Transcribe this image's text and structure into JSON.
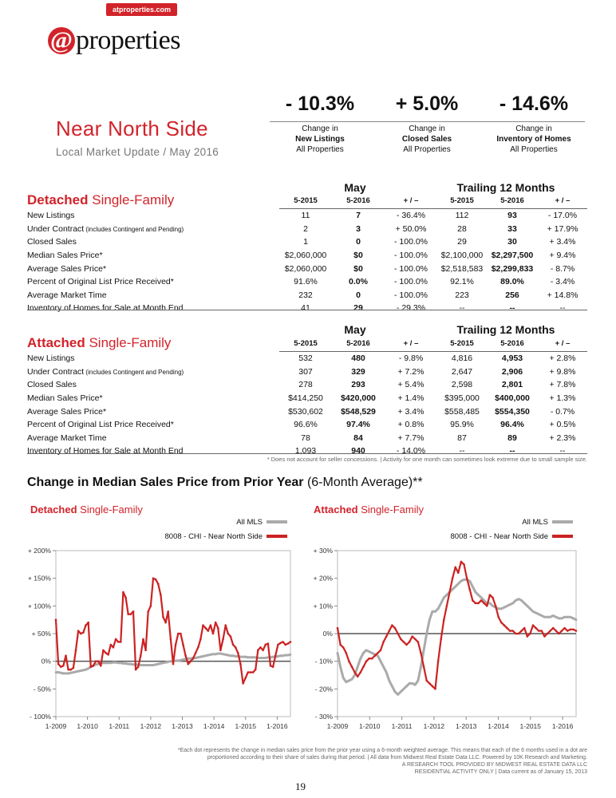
{
  "header": {
    "site_tag": "atproperties.com",
    "logo_at": "@",
    "logo_word": "properties",
    "title": "Near North Side",
    "subtitle": "Local Market Update / May 2016",
    "brand_color": "#d2232a"
  },
  "headlines": [
    {
      "value": "- 10.3%",
      "line1": "Change in",
      "line2": "New Listings",
      "line3": "All Properties"
    },
    {
      "value": "+ 5.0%",
      "line1": "Change in",
      "line2": "Closed Sales",
      "line3": "All Properties"
    },
    {
      "value": "- 14.6%",
      "line1": "Change in",
      "line2": "Inventory of Homes",
      "line3": "All Properties"
    }
  ],
  "group_labels": {
    "may": "May",
    "trailing": "Trailing 12 Months"
  },
  "columns": [
    "5-2015",
    "5-2016",
    "+ / –",
    "5-2015",
    "5-2016",
    "+ / –"
  ],
  "detached": {
    "title_bold": "Detached",
    "title_rest": " Single-Family",
    "rows": [
      {
        "label": "New Listings",
        "note": "",
        "cells": [
          "11",
          "7",
          "- 36.4%",
          "112",
          "93",
          "- 17.0%"
        ]
      },
      {
        "label": "Under Contract",
        "note": " (includes Contingent and Pending)",
        "cells": [
          "2",
          "3",
          "+ 50.0%",
          "28",
          "33",
          "+ 17.9%"
        ]
      },
      {
        "label": "Closed Sales",
        "note": "",
        "cells": [
          "1",
          "0",
          "- 100.0%",
          "29",
          "30",
          "+ 3.4%"
        ]
      },
      {
        "label": "Median Sales Price*",
        "note": "",
        "cells": [
          "$2,060,000",
          "$0",
          "- 100.0%",
          "$2,100,000",
          "$2,297,500",
          "+ 9.4%"
        ]
      },
      {
        "label": "Average Sales Price*",
        "note": "",
        "cells": [
          "$2,060,000",
          "$0",
          "- 100.0%",
          "$2,518,583",
          "$2,299,833",
          "- 8.7%"
        ]
      },
      {
        "label": "Percent of Original List Price Received*",
        "note": "",
        "cells": [
          "91.6%",
          "0.0%",
          "- 100.0%",
          "92.1%",
          "89.0%",
          "- 3.4%"
        ]
      },
      {
        "label": "Average Market Time",
        "note": "",
        "cells": [
          "232",
          "0",
          "- 100.0%",
          "223",
          "256",
          "+ 14.8%"
        ]
      },
      {
        "label": "Inventory of Homes for Sale at Month End",
        "note": "",
        "cells": [
          "41",
          "29",
          "- 29.3%",
          "--",
          "--",
          "--"
        ]
      }
    ]
  },
  "attached": {
    "title_bold": "Attached",
    "title_rest": " Single-Family",
    "rows": [
      {
        "label": "New Listings",
        "note": "",
        "cells": [
          "532",
          "480",
          "- 9.8%",
          "4,816",
          "4,953",
          "+ 2.8%"
        ]
      },
      {
        "label": "Under Contract",
        "note": " (includes Contingent and Pending)",
        "cells": [
          "307",
          "329",
          "+ 7.2%",
          "2,647",
          "2,906",
          "+ 9.8%"
        ]
      },
      {
        "label": "Closed Sales",
        "note": "",
        "cells": [
          "278",
          "293",
          "+ 5.4%",
          "2,598",
          "2,801",
          "+ 7.8%"
        ]
      },
      {
        "label": "Median Sales Price*",
        "note": "",
        "cells": [
          "$414,250",
          "$420,000",
          "+ 1.4%",
          "$395,000",
          "$400,000",
          "+ 1.3%"
        ]
      },
      {
        "label": "Average Sales Price*",
        "note": "",
        "cells": [
          "$530,602",
          "$548,529",
          "+ 3.4%",
          "$558,485",
          "$554,350",
          "- 0.7%"
        ]
      },
      {
        "label": "Percent of Original List Price Received*",
        "note": "",
        "cells": [
          "96.6%",
          "97.4%",
          "+ 0.8%",
          "95.9%",
          "96.4%",
          "+ 0.5%"
        ]
      },
      {
        "label": "Average Market Time",
        "note": "",
        "cells": [
          "78",
          "84",
          "+ 7.7%",
          "87",
          "89",
          "+ 2.3%"
        ]
      },
      {
        "label": "Inventory of Homes for Sale at Month End",
        "note": "",
        "cells": [
          "1,093",
          "940",
          "- 14.0%",
          "--",
          "--",
          "--"
        ]
      }
    ]
  },
  "table_footnote": "* Does not account for seller concessions.  |  Activity for one month can sometimes look extreme due to small sample size.",
  "chart_section": {
    "title": "Change in Median Sales Price from Prior Year",
    "title_suffix": " (6-Month Average)**"
  },
  "chart_data": [
    {
      "type": "line",
      "heading_bold": "Detached",
      "heading_rest": " Single-Family",
      "ylim": [
        -100,
        200
      ],
      "y_ticks": [
        200,
        150,
        100,
        50,
        0,
        -50,
        -100
      ],
      "y_tick_labels": [
        "+ 200%",
        "+ 150%",
        "+ 100%",
        "+ 50%",
        "0%",
        "- 50%",
        "- 100%"
      ],
      "x_tick_labels": [
        "1-2009",
        "1-2010",
        "1-2011",
        "1-2012",
        "1-2013",
        "1-2014",
        "1-2015",
        "1-2016"
      ],
      "x_start": 2009.0,
      "x_end": 2016.42,
      "series": [
        {
          "name": "All MLS",
          "color": "#aaaaaa",
          "values": [
            -20,
            -20,
            -21,
            -22,
            -22,
            -22,
            -21,
            -20,
            -19,
            -18,
            -17,
            -16,
            -15,
            -13,
            -10,
            -8,
            -6,
            -5,
            -4,
            -3,
            -3,
            -3,
            -3,
            -2,
            -2,
            -3,
            -3,
            -4,
            -4,
            -5,
            -5,
            -6,
            -6,
            -6,
            -7,
            -7,
            -7,
            -7,
            -7,
            -7,
            -6,
            -5,
            -4,
            -3,
            -2,
            -1,
            0,
            0,
            1,
            1,
            2,
            3,
            4,
            5,
            5,
            6,
            6,
            7,
            8,
            9,
            10,
            11,
            12,
            13,
            13,
            14,
            14,
            13,
            12,
            11,
            10,
            10,
            9,
            9,
            8,
            8,
            8,
            7,
            7,
            7,
            7,
            6,
            6,
            6,
            6,
            7,
            7,
            8,
            8,
            9,
            10,
            10,
            11,
            11,
            12
          ]
        },
        {
          "name": "8008 - CHI - Near North Side",
          "color": "#cc2222",
          "values": [
            75,
            -5,
            -10,
            -8,
            10,
            -15,
            -15,
            -12,
            20,
            55,
            50,
            52,
            65,
            70,
            -10,
            -8,
            0,
            0,
            -8,
            20,
            15,
            12,
            30,
            25,
            40,
            35,
            35,
            125,
            115,
            85,
            85,
            90,
            -15,
            -10,
            10,
            40,
            20,
            90,
            100,
            150,
            148,
            140,
            120,
            80,
            70,
            90,
            40,
            -5,
            30,
            50,
            50,
            30,
            10,
            -5,
            0,
            5,
            15,
            25,
            40,
            65,
            60,
            55,
            65,
            50,
            70,
            60,
            20,
            40,
            65,
            50,
            45,
            30,
            25,
            15,
            -5,
            -40,
            -30,
            -20,
            -20,
            -20,
            -15,
            20,
            25,
            20,
            30,
            32,
            -8,
            -10,
            10,
            30,
            33,
            35,
            30,
            32,
            35
          ]
        }
      ]
    },
    {
      "type": "line",
      "heading_bold": "Attached",
      "heading_rest": " Single-Family",
      "ylim": [
        -30,
        30
      ],
      "y_ticks": [
        30,
        20,
        10,
        0,
        -10,
        -20,
        -30
      ],
      "y_tick_labels": [
        "+ 30%",
        "+ 20%",
        "+ 10%",
        "0%",
        "- 10%",
        "- 20%",
        "- 30%"
      ],
      "x_tick_labels": [
        "1-2009",
        "1-2010",
        "1-2011",
        "1-2012",
        "1-2013",
        "1-2014",
        "1-2015",
        "1-2016"
      ],
      "x_start": 2009.0,
      "x_end": 2016.42,
      "series": [
        {
          "name": "All MLS",
          "color": "#aaaaaa",
          "values": [
            -7,
            -12,
            -16,
            -17.5,
            -17,
            -16.5,
            -15,
            -12,
            -9,
            -7,
            -6,
            -6.5,
            -7,
            -7.5,
            -8,
            -10,
            -12,
            -14,
            -17,
            -19,
            -21,
            -22,
            -21,
            -20,
            -19,
            -18,
            -18,
            -18.5,
            -17,
            -12,
            -6,
            0,
            5,
            8,
            8,
            9,
            11,
            13,
            14,
            15,
            16,
            17,
            18,
            19,
            19.5,
            19.5,
            19,
            17,
            15,
            14,
            13,
            12,
            11,
            11,
            10,
            9.5,
            9,
            9,
            9.5,
            10,
            10.5,
            11,
            12,
            12.5,
            12,
            11,
            10,
            9,
            8,
            7.5,
            7,
            6.5,
            6,
            6,
            6,
            6.5,
            6,
            5.5,
            5.5,
            6,
            6,
            6,
            5.5,
            5
          ]
        },
        {
          "name": "8008 - CHI - Near North Side",
          "color": "#cc2222",
          "values": [
            2,
            -4,
            -5,
            -7,
            -10,
            -12,
            -14,
            -15.5,
            -14,
            -12,
            -10,
            -9,
            -9,
            -8,
            -7,
            -6,
            -3,
            -1,
            1,
            3,
            2,
            0,
            -2,
            -3,
            -4,
            -3,
            -1,
            -2,
            -3,
            -7,
            -12,
            -17,
            -18,
            -19,
            -20,
            -10,
            -2,
            5,
            10,
            15,
            20,
            24,
            22,
            26,
            25,
            20,
            16,
            12,
            11,
            11,
            12,
            11,
            10,
            14,
            13,
            10,
            6,
            4,
            3,
            2,
            1,
            1,
            0,
            0,
            1,
            2,
            -1,
            0,
            3,
            2,
            1,
            1,
            -1,
            0,
            1,
            2,
            1,
            0,
            1,
            2,
            1,
            1.5,
            1.5,
            1
          ]
        }
      ]
    }
  ],
  "chart_footnote": {
    "line1": "*Each dot represents the change in median sales price from the prior year using a 6-month weighted average. This means that each of the 6 months used in a dot are",
    "line2": "proportioned according to their share of sales during that period.  |  All data from Midwest Real Estate Data LLC. Powered by 10K Research and Marketing.",
    "line3": "A RESEARCH TOOL PROVIDED BY MIDWEST REAL ESTATE DATA LLC",
    "line4": "RESIDENTIAL ACTIVITY ONLY  |  Data current as of January 15, 2013"
  },
  "page_number": "19"
}
